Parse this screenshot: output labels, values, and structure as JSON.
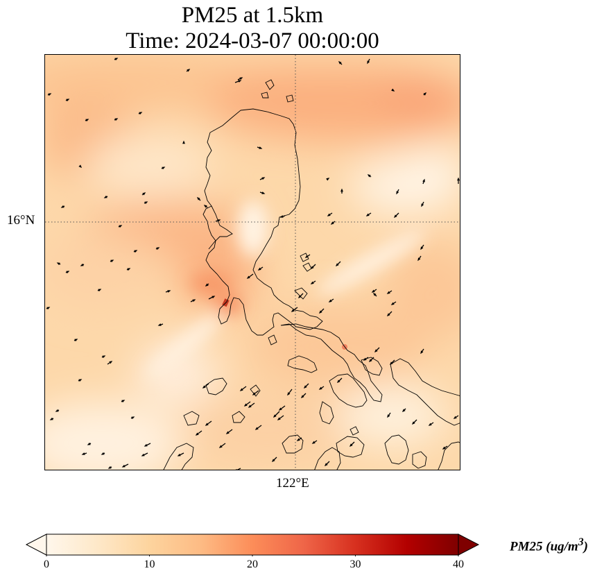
{
  "figure": {
    "title_line1": "PM25 at 1.5km",
    "title_line2": "Time: 2024-03-07 00:00:00"
  },
  "map": {
    "gridlines": {
      "latitude_label": "16°N",
      "longitude_label": "122°E",
      "style": "dotted"
    },
    "features": [
      "coastlines",
      "wind-vectors",
      "pm25-field"
    ],
    "region": "Luzon, Philippines"
  },
  "colorbar": {
    "colormap": "OrRd",
    "ticks": [
      "0",
      "10",
      "20",
      "30",
      "40"
    ],
    "min": 0,
    "max": 40,
    "units_label_prefix": "PM25 (ug/m",
    "units_label_sup": "3",
    "units_label_suffix": ")",
    "extend": "both",
    "colors": [
      "#fff7ec",
      "#fee8c8",
      "#fdd49e",
      "#fdbb84",
      "#fc8d59",
      "#ef6548",
      "#d7301f",
      "#b30000",
      "#7f0000"
    ]
  }
}
